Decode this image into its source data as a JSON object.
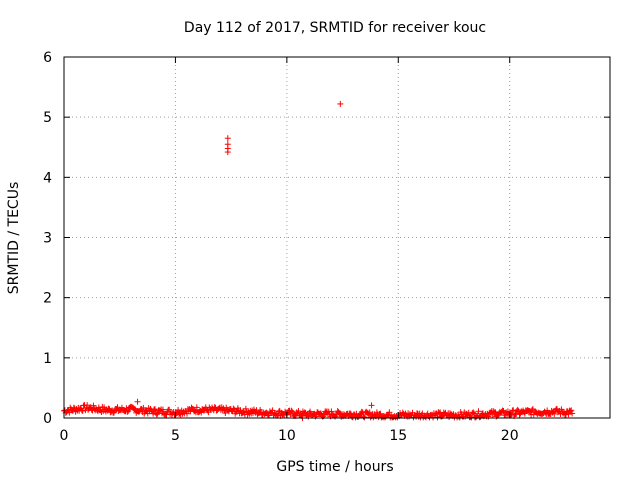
{
  "chart_data": {
    "type": "scatter",
    "title": "Day 112 of 2017, SRMTID for receiver kouc",
    "xlabel": "GPS time / hours",
    "ylabel": "SRMTID / TECUs",
    "xlim": [
      0,
      24.5
    ],
    "ylim": [
      0,
      6
    ],
    "xticks": [
      0,
      5,
      10,
      15,
      20
    ],
    "xtick_labels": [
      "0",
      "5",
      "10",
      "15",
      "20"
    ],
    "yticks": [
      0,
      1,
      2,
      3,
      4,
      5,
      6
    ],
    "ytick_labels": [
      "0",
      "1",
      "2",
      "3",
      "4",
      "5",
      "6"
    ],
    "grid": true,
    "marker": "+",
    "color": "#ff0000",
    "series": [
      {
        "name": "SRMTID",
        "outliers": [
          {
            "x": 7.35,
            "y": 4.65
          },
          {
            "x": 7.35,
            "y": 4.55
          },
          {
            "x": 7.35,
            "y": 4.48
          },
          {
            "x": 7.35,
            "y": 4.42
          },
          {
            "x": 12.4,
            "y": 5.22
          },
          {
            "x": 3.3,
            "y": 0.27
          },
          {
            "x": 13.8,
            "y": 0.21
          },
          {
            "x": 10.7,
            "y": 0.0
          }
        ],
        "baseline_profile": [
          {
            "x": 0.0,
            "y": 0.12
          },
          {
            "x": 1.0,
            "y": 0.17
          },
          {
            "x": 2.0,
            "y": 0.13
          },
          {
            "x": 3.0,
            "y": 0.14
          },
          {
            "x": 4.0,
            "y": 0.11
          },
          {
            "x": 5.0,
            "y": 0.1
          },
          {
            "x": 6.0,
            "y": 0.14
          },
          {
            "x": 7.0,
            "y": 0.13
          },
          {
            "x": 8.0,
            "y": 0.11
          },
          {
            "x": 9.0,
            "y": 0.09
          },
          {
            "x": 10.0,
            "y": 0.08
          },
          {
            "x": 11.0,
            "y": 0.06
          },
          {
            "x": 12.0,
            "y": 0.07
          },
          {
            "x": 13.0,
            "y": 0.06
          },
          {
            "x": 14.0,
            "y": 0.05
          },
          {
            "x": 15.0,
            "y": 0.05
          },
          {
            "x": 16.0,
            "y": 0.05
          },
          {
            "x": 17.0,
            "y": 0.05
          },
          {
            "x": 18.0,
            "y": 0.05
          },
          {
            "x": 19.0,
            "y": 0.07
          },
          {
            "x": 20.0,
            "y": 0.08
          },
          {
            "x": 21.0,
            "y": 0.1
          },
          {
            "x": 22.0,
            "y": 0.11
          },
          {
            "x": 22.8,
            "y": 0.09
          }
        ]
      }
    ]
  }
}
